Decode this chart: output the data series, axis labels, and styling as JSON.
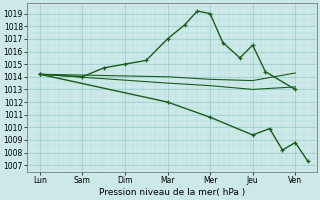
{
  "xlabel": "Pression niveau de la mer( hPa )",
  "xtick_labels": [
    "Lun",
    "Sam",
    "Dim",
    "Mar",
    "Mer",
    "Jeu",
    "Ven"
  ],
  "xtick_positions": [
    0,
    1,
    2,
    3,
    4,
    5,
    6
  ],
  "ylim": [
    1006.5,
    1019.8
  ],
  "yticks": [
    1007,
    1008,
    1009,
    1010,
    1011,
    1012,
    1013,
    1014,
    1015,
    1016,
    1017,
    1018,
    1019
  ],
  "background_color": "#cce8e8",
  "grid_color": "#99cccc",
  "line_color": "#1a5c1a",
  "series": [
    {
      "x": [
        0,
        1,
        1.5,
        2,
        2.5,
        3,
        3.4,
        3.7,
        4,
        4.3,
        4.7,
        5,
        5.3,
        6
      ],
      "y": [
        1014.2,
        1014.0,
        1014.7,
        1015.0,
        1015.3,
        1017.0,
        1018.1,
        1019.2,
        1019.0,
        1016.7,
        1015.5,
        1016.5,
        1014.4,
        1013.0
      ],
      "marker": true,
      "linewidth": 1.0
    },
    {
      "x": [
        0,
        3,
        4,
        5,
        6
      ],
      "y": [
        1014.2,
        1014.0,
        1013.8,
        1013.7,
        1014.3
      ],
      "marker": false,
      "linewidth": 0.8
    },
    {
      "x": [
        0,
        3,
        4,
        5,
        6
      ],
      "y": [
        1014.2,
        1013.5,
        1013.3,
        1013.0,
        1013.2
      ],
      "marker": false,
      "linewidth": 0.8
    },
    {
      "x": [
        0,
        3,
        4,
        5,
        5.4,
        5.7,
        6,
        6.3
      ],
      "y": [
        1014.2,
        1012.0,
        1010.8,
        1009.4,
        1009.9,
        1008.2,
        1008.8,
        1007.3
      ],
      "marker": true,
      "linewidth": 1.0
    }
  ]
}
